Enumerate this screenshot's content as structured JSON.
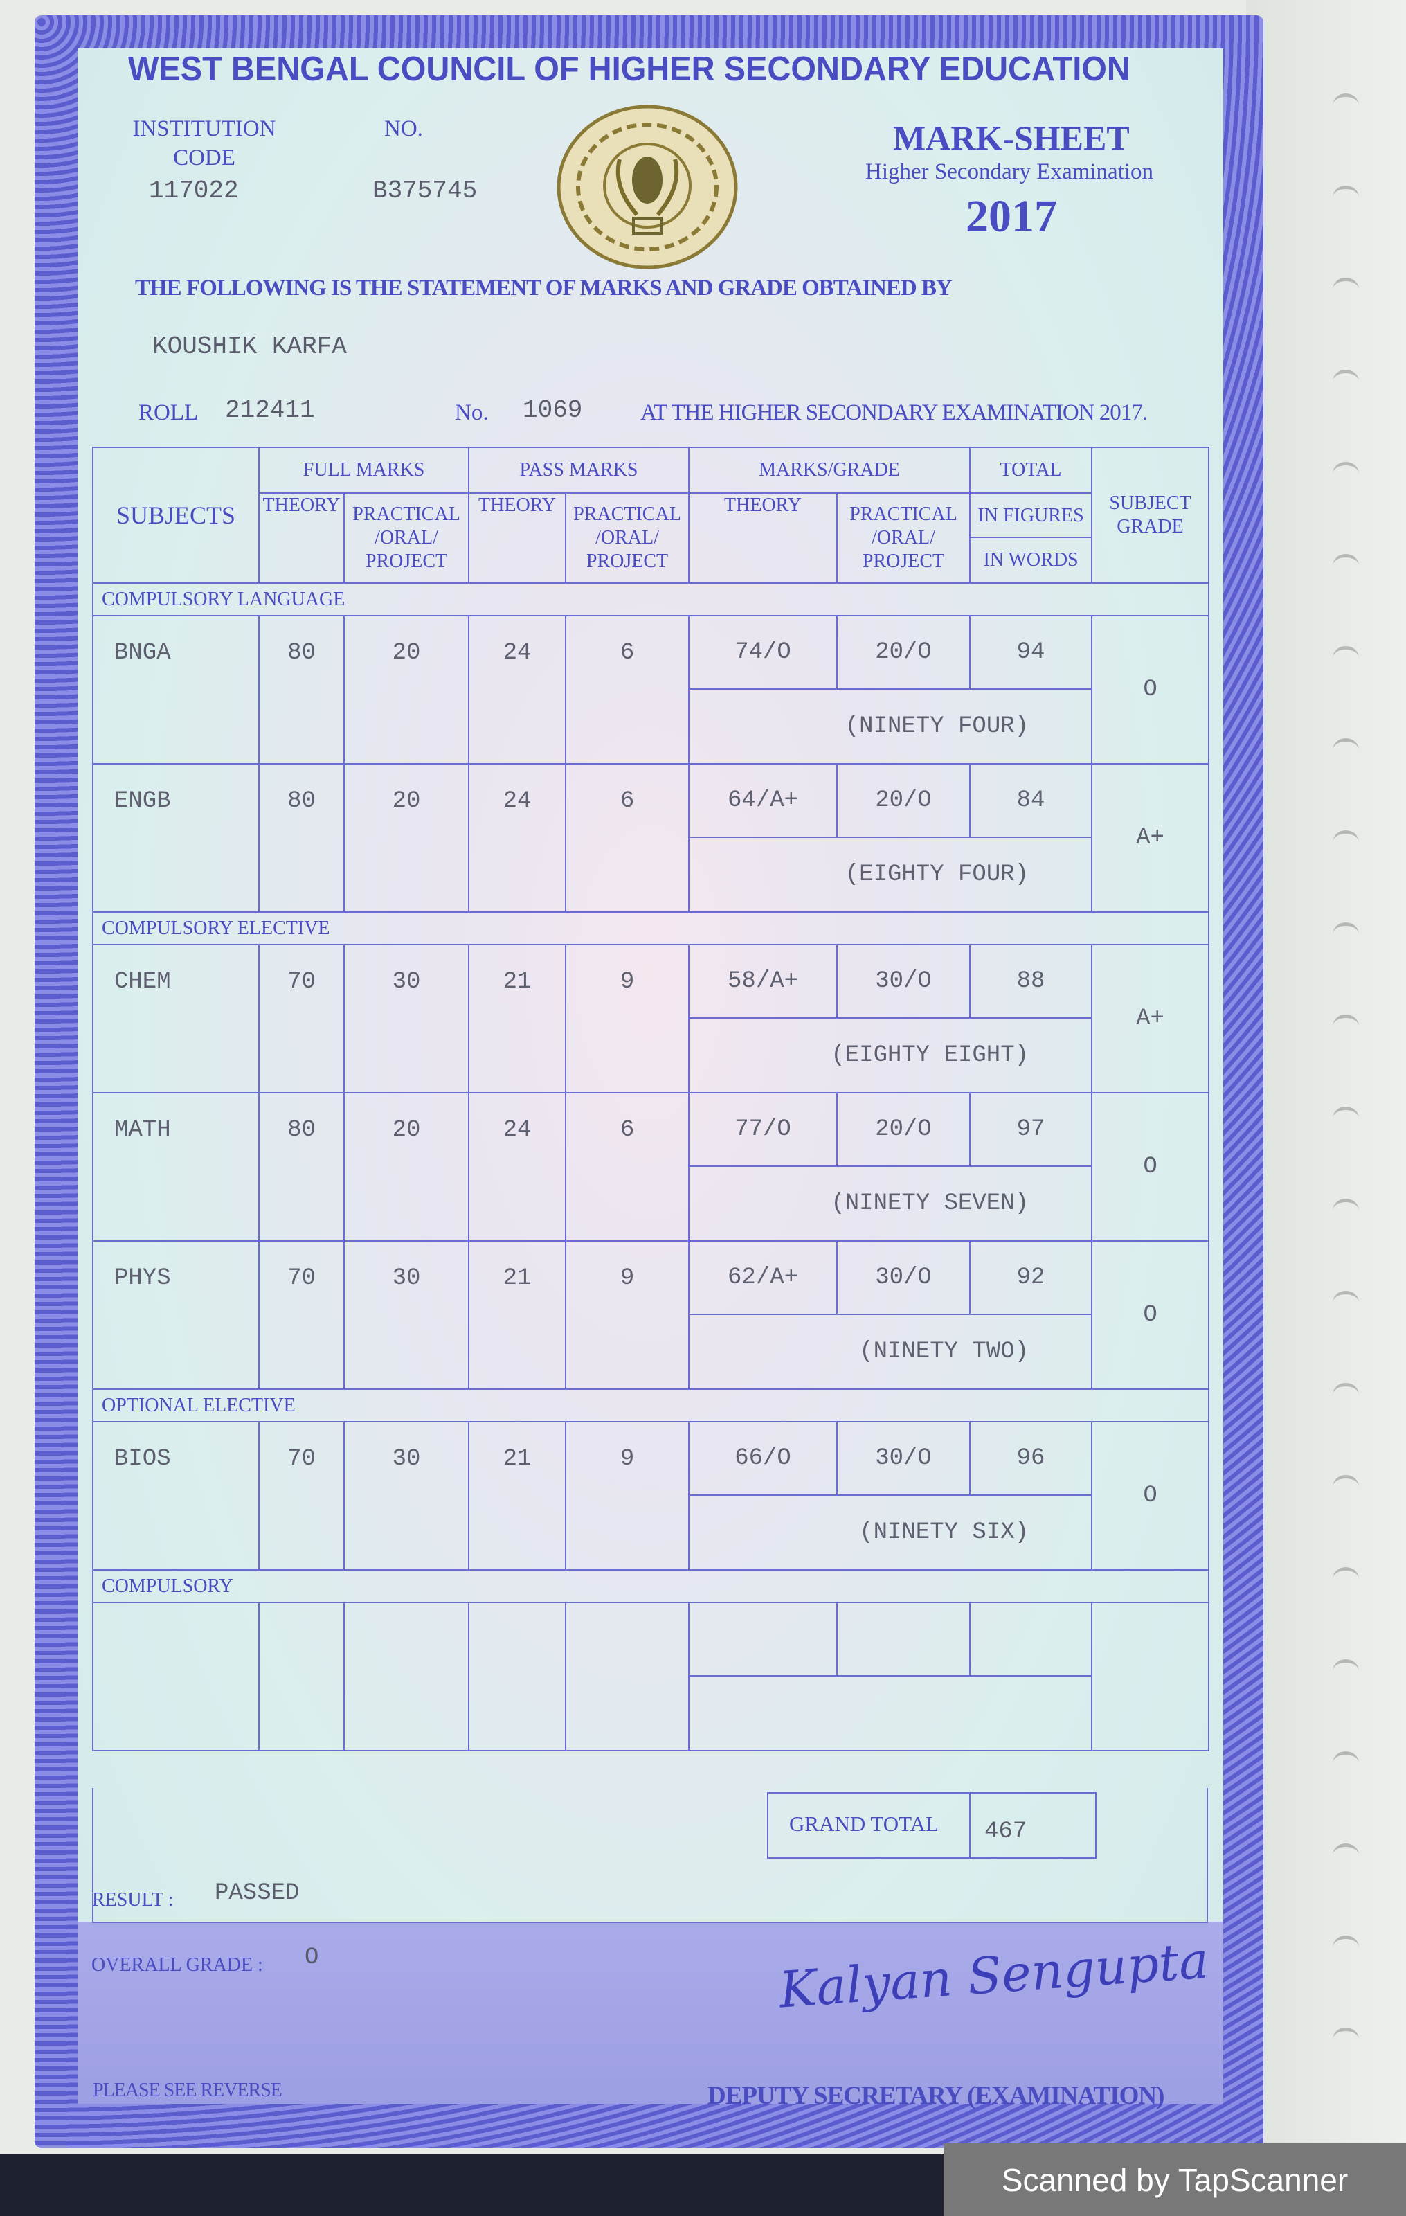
{
  "header": {
    "title": "WEST BENGAL COUNCIL OF HIGHER SECONDARY EDUCATION",
    "institution_code_label": "INSTITUTION CODE",
    "institution_code": "117022",
    "no_label": "NO.",
    "no_value": "B375745",
    "sheet_title": "MARK-SHEET",
    "exam": "Higher Secondary Examination",
    "year": "2017"
  },
  "statement": "THE FOLLOWING IS THE STATEMENT OF MARKS AND GRADE OBTAINED BY",
  "student": {
    "name": "KOUSHIK KARFA",
    "roll_label": "ROLL",
    "roll": "212411",
    "no_label": "No.",
    "no": "1069",
    "exam_text": "AT THE HIGHER SECONDARY EXAMINATION 2017."
  },
  "table": {
    "headers": {
      "subjects": "SUBJECTS",
      "full_marks": "FULL MARKS",
      "pass_marks": "PASS MARKS",
      "marks_grade": "MARKS/GRADE",
      "total": "TOTAL",
      "subject_grade": "SUBJECT GRADE",
      "theory": "THEORY",
      "practical": "PRACTICAL /ORAL/ PROJECT",
      "in_figures": "IN FIGURES",
      "in_words": "IN WORDS"
    },
    "groups": [
      {
        "label": "COMPULSORY LANGUAGE",
        "subjects": [
          {
            "code": "BNGA",
            "fm_th": "80",
            "fm_pr": "20",
            "pm_th": "24",
            "pm_pr": "6",
            "mg_th": "74/O",
            "mg_pr": "20/O",
            "total": "94",
            "words": "(NINETY FOUR)",
            "grade": "O"
          },
          {
            "code": "ENGB",
            "fm_th": "80",
            "fm_pr": "20",
            "pm_th": "24",
            "pm_pr": "6",
            "mg_th": "64/A+",
            "mg_pr": "20/O",
            "total": "84",
            "words": "(EIGHTY FOUR)",
            "grade": "A+"
          }
        ]
      },
      {
        "label": "COMPULSORY ELECTIVE",
        "subjects": [
          {
            "code": "CHEM",
            "fm_th": "70",
            "fm_pr": "30",
            "pm_th": "21",
            "pm_pr": "9",
            "mg_th": "58/A+",
            "mg_pr": "30/O",
            "total": "88",
            "words": "(EIGHTY EIGHT)",
            "grade": "A+"
          },
          {
            "code": "MATH",
            "fm_th": "80",
            "fm_pr": "20",
            "pm_th": "24",
            "pm_pr": "6",
            "mg_th": "77/O",
            "mg_pr": "20/O",
            "total": "97",
            "words": "(NINETY SEVEN)",
            "grade": "O"
          },
          {
            "code": "PHYS",
            "fm_th": "70",
            "fm_pr": "30",
            "pm_th": "21",
            "pm_pr": "9",
            "mg_th": "62/A+",
            "mg_pr": "30/O",
            "total": "92",
            "words": "(NINETY TWO)",
            "grade": "O"
          }
        ]
      },
      {
        "label": "OPTIONAL ELECTIVE",
        "subjects": [
          {
            "code": "BIOS",
            "fm_th": "70",
            "fm_pr": "30",
            "pm_th": "21",
            "pm_pr": "9",
            "mg_th": "66/O",
            "mg_pr": "30/O",
            "total": "96",
            "words": "(NINETY SIX)",
            "grade": "O"
          }
        ]
      },
      {
        "label": "COMPULSORY",
        "subjects": [
          {
            "code": "",
            "fm_th": "",
            "fm_pr": "",
            "pm_th": "",
            "pm_pr": "",
            "mg_th": "",
            "mg_pr": "",
            "total": "",
            "words": "",
            "grade": ""
          }
        ]
      }
    ],
    "grand_total_label": "GRAND TOTAL",
    "grand_total": "467"
  },
  "result": {
    "label": "RESULT :",
    "value": "PASSED",
    "overall_label": "OVERALL GRADE :",
    "overall": "O"
  },
  "footer": {
    "reverse": "PLEASE SEE REVERSE",
    "signatory": "DEPUTY SECRETARY (EXAMINATION)",
    "signature": "Kalyan Sengupta"
  },
  "watermark": "Scanned by TapScanner",
  "colors": {
    "ink_blue": "#4a4cc2",
    "border": "#6c6ed8",
    "print": "#5a5c6c"
  }
}
